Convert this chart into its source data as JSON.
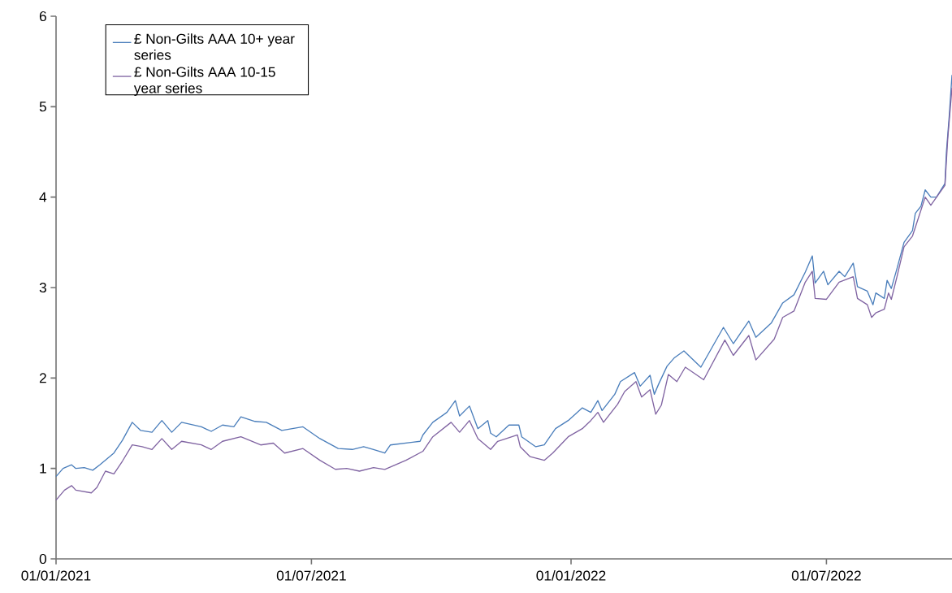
{
  "chart_data": {
    "type": "line",
    "legend": "top left",
    "marker": "none",
    "line_style": "solid",
    "xlim": [
      "2021-01-01",
      "2022-09-28"
    ],
    "ylim": [
      0,
      6
    ],
    "yticks": [
      0,
      1,
      2,
      3,
      4,
      5,
      6
    ],
    "xticks": [
      {
        "value": "2021-01-01",
        "label": "01/01/2021"
      },
      {
        "value": "2021-07-01",
        "label": "01/07/2021"
      },
      {
        "value": "2022-01-01",
        "label": "01/01/2022"
      },
      {
        "value": "2022-07-01",
        "label": "01/07/2022"
      }
    ],
    "series": [
      {
        "name": "£ Non-Gilts AAA 10+ year series",
        "color": "#4a7ebb",
        "x": [
          "2021-01-01",
          "2021-01-06",
          "2021-01-12",
          "2021-01-15",
          "2021-01-21",
          "2021-01-27",
          "2021-02-01",
          "2021-02-11",
          "2021-02-17",
          "2021-02-24",
          "2021-03-02",
          "2021-03-10",
          "2021-03-17",
          "2021-03-24",
          "2021-03-31",
          "2021-04-14",
          "2021-04-21",
          "2021-04-29",
          "2021-05-07",
          "2021-05-12",
          "2021-05-22",
          "2021-05-30",
          "2021-06-10",
          "2021-06-25",
          "2021-07-07",
          "2021-07-20",
          "2021-07-30",
          "2021-08-07",
          "2021-08-14",
          "2021-08-22",
          "2021-08-26",
          "2021-09-16",
          "2021-09-18",
          "2021-09-25",
          "2021-10-05",
          "2021-10-11",
          "2021-10-14",
          "2021-10-21",
          "2021-10-27",
          "2021-11-03",
          "2021-11-05",
          "2021-11-09",
          "2021-11-18",
          "2021-11-25",
          "2021-11-27",
          "2021-12-07",
          "2021-12-13",
          "2021-12-21",
          "2021-12-30",
          "2022-01-09",
          "2022-01-15",
          "2022-01-20",
          "2022-01-23",
          "2022-02-01",
          "2022-02-05",
          "2022-02-15",
          "2022-02-19",
          "2022-02-26",
          "2022-03-01",
          "2022-03-04",
          "2022-03-10",
          "2022-03-15",
          "2022-03-22",
          "2022-04-03",
          "2022-04-19",
          "2022-04-26",
          "2022-05-07",
          "2022-05-12",
          "2022-05-23",
          "2022-05-31",
          "2022-06-08",
          "2022-06-16",
          "2022-06-21",
          "2022-06-23",
          "2022-06-29",
          "2022-07-02",
          "2022-07-10",
          "2022-07-14",
          "2022-07-20",
          "2022-07-23",
          "2022-07-30",
          "2022-08-03",
          "2022-08-05",
          "2022-08-11",
          "2022-08-13",
          "2022-08-16",
          "2022-08-20",
          "2022-08-25",
          "2022-08-31",
          "2022-09-02",
          "2022-09-06",
          "2022-09-09",
          "2022-09-13",
          "2022-09-17",
          "2022-09-23",
          "2022-09-24",
          "2022-09-26",
          "2022-09-28"
        ],
        "values": [
          0.91,
          1.0,
          1.04,
          1.0,
          1.01,
          0.98,
          1.04,
          1.17,
          1.31,
          1.51,
          1.42,
          1.4,
          1.53,
          1.4,
          1.51,
          1.46,
          1.41,
          1.48,
          1.46,
          1.57,
          1.52,
          1.51,
          1.42,
          1.46,
          1.33,
          1.22,
          1.21,
          1.24,
          1.21,
          1.17,
          1.26,
          1.3,
          1.37,
          1.51,
          1.62,
          1.75,
          1.58,
          1.69,
          1.44,
          1.53,
          1.39,
          1.35,
          1.48,
          1.48,
          1.35,
          1.24,
          1.26,
          1.44,
          1.53,
          1.67,
          1.62,
          1.75,
          1.64,
          1.82,
          1.96,
          2.06,
          1.91,
          2.03,
          1.82,
          1.93,
          2.13,
          2.22,
          2.3,
          2.12,
          2.56,
          2.38,
          2.63,
          2.45,
          2.61,
          2.83,
          2.92,
          3.17,
          3.35,
          3.05,
          3.18,
          3.03,
          3.18,
          3.12,
          3.27,
          3.01,
          2.96,
          2.81,
          2.94,
          2.88,
          3.08,
          2.99,
          3.21,
          3.5,
          3.63,
          3.82,
          3.9,
          4.08,
          4.0,
          4.0,
          4.15,
          4.49,
          4.89,
          5.35
        ]
      },
      {
        "name": "£ Non-Gilts AAA 10-15 year series",
        "color": "#8064a2",
        "x": [
          "2021-01-01",
          "2021-01-07",
          "2021-01-12",
          "2021-01-15",
          "2021-01-26",
          "2021-01-30",
          "2021-02-05",
          "2021-02-11",
          "2021-02-17",
          "2021-02-24",
          "2021-03-03",
          "2021-03-10",
          "2021-03-17",
          "2021-03-24",
          "2021-03-31",
          "2021-04-14",
          "2021-04-21",
          "2021-04-29",
          "2021-05-12",
          "2021-05-26",
          "2021-06-04",
          "2021-06-12",
          "2021-06-25",
          "2021-07-07",
          "2021-07-18",
          "2021-07-26",
          "2021-08-04",
          "2021-08-14",
          "2021-08-22",
          "2021-09-06",
          "2021-09-18",
          "2021-09-25",
          "2021-10-08",
          "2021-10-14",
          "2021-10-21",
          "2021-10-27",
          "2021-11-05",
          "2021-11-10",
          "2021-11-24",
          "2021-11-26",
          "2021-12-03",
          "2021-12-13",
          "2021-12-19",
          "2021-12-30",
          "2022-01-09",
          "2022-01-15",
          "2022-01-20",
          "2022-01-24",
          "2022-02-03",
          "2022-02-08",
          "2022-02-16",
          "2022-02-20",
          "2022-02-26",
          "2022-03-02",
          "2022-03-06",
          "2022-03-11",
          "2022-03-17",
          "2022-03-23",
          "2022-04-05",
          "2022-04-20",
          "2022-04-26",
          "2022-05-07",
          "2022-05-12",
          "2022-05-25",
          "2022-05-31",
          "2022-06-08",
          "2022-06-16",
          "2022-06-21",
          "2022-06-23",
          "2022-07-01",
          "2022-07-10",
          "2022-07-20",
          "2022-07-23",
          "2022-07-30",
          "2022-08-02",
          "2022-08-05",
          "2022-08-11",
          "2022-08-14",
          "2022-08-16",
          "2022-08-20",
          "2022-08-25",
          "2022-08-31",
          "2022-09-09",
          "2022-09-13",
          "2022-09-23",
          "2022-09-25",
          "2022-09-28"
        ],
        "values": [
          0.65,
          0.76,
          0.81,
          0.76,
          0.73,
          0.79,
          0.97,
          0.94,
          1.08,
          1.26,
          1.24,
          1.21,
          1.33,
          1.21,
          1.3,
          1.26,
          1.21,
          1.3,
          1.35,
          1.26,
          1.28,
          1.17,
          1.22,
          1.09,
          0.99,
          1.0,
          0.97,
          1.01,
          0.99,
          1.09,
          1.19,
          1.35,
          1.51,
          1.4,
          1.53,
          1.33,
          1.21,
          1.3,
          1.37,
          1.24,
          1.13,
          1.09,
          1.17,
          1.35,
          1.44,
          1.53,
          1.62,
          1.51,
          1.71,
          1.85,
          1.96,
          1.79,
          1.87,
          1.6,
          1.7,
          2.04,
          1.96,
          2.12,
          1.98,
          2.42,
          2.25,
          2.47,
          2.2,
          2.43,
          2.67,
          2.74,
          3.06,
          3.18,
          2.88,
          2.87,
          3.06,
          3.12,
          2.88,
          2.81,
          2.67,
          2.72,
          2.76,
          2.94,
          2.87,
          3.12,
          3.45,
          3.57,
          4.0,
          3.91,
          4.13,
          4.65,
          5.21
        ]
      }
    ]
  }
}
